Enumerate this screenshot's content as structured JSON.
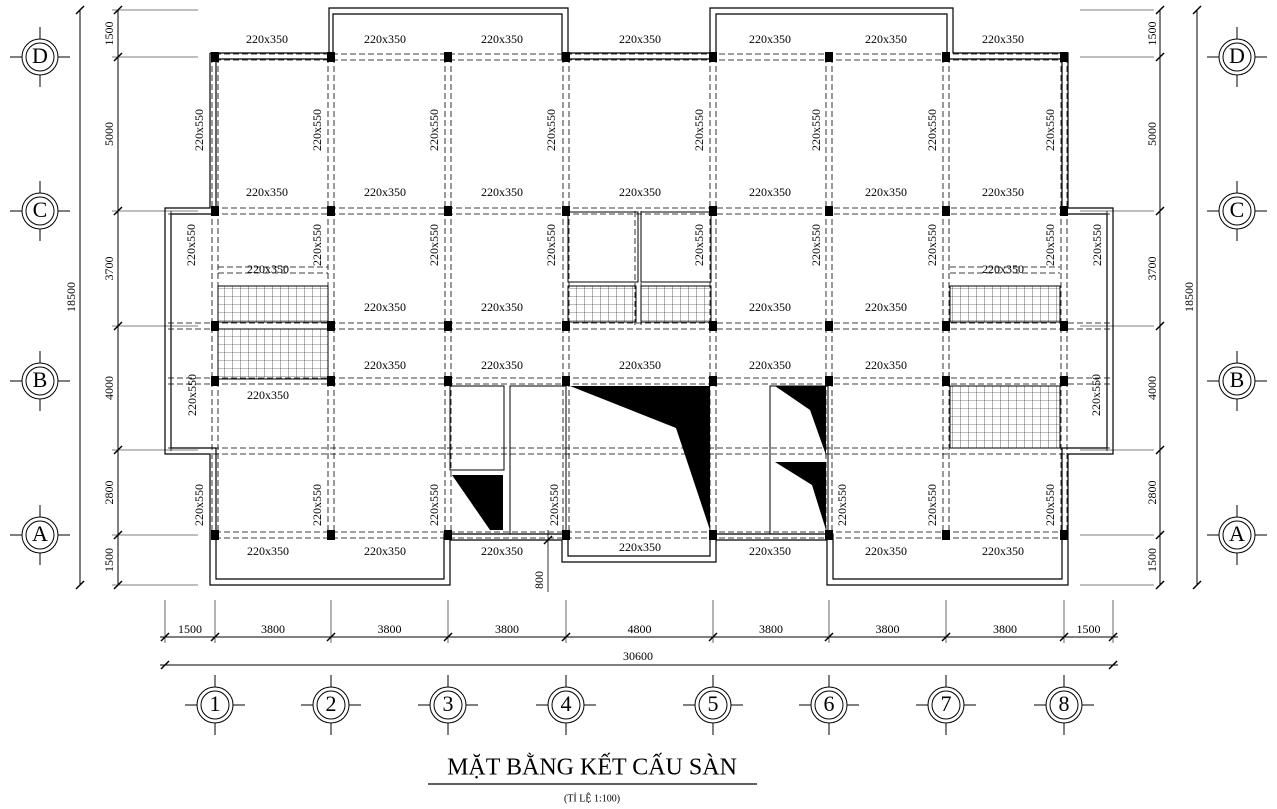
{
  "axes": {
    "columns": [
      "1",
      "2",
      "3",
      "4",
      "5",
      "6",
      "7",
      "8"
    ],
    "rows": [
      "D",
      "C",
      "B",
      "A"
    ]
  },
  "beams": {
    "horizontal": [
      "220x350",
      "220x350",
      "220x350",
      "220x350",
      "220x350",
      "220x350",
      "220x350",
      "220x350",
      "220x350",
      "220x350",
      "220x350",
      "220x350",
      "220x350",
      "220x350",
      "220x350",
      "220x350",
      "220x350",
      "220x350",
      "220x350",
      "220x350",
      "220x350",
      "220x350",
      "220x350",
      "220x350",
      "220x350",
      "220x350",
      "220x350",
      "220x350",
      "220x350",
      "220x350",
      "220x350",
      "220x350",
      "220x350"
    ],
    "vertical": [
      "220x550",
      "220x550",
      "220x550",
      "220x550",
      "220x550",
      "220x550",
      "220x550",
      "220x550",
      "220x550",
      "220x550",
      "220x550",
      "220x550",
      "220x550",
      "220x550",
      "220x550",
      "220x550",
      "220x550",
      "220x550",
      "220x550",
      "220x550",
      "220x550",
      "220x550",
      "220x550",
      "220x550",
      "220x550",
      "220x550"
    ]
  },
  "dimensions": {
    "left": [
      "1500",
      "5000",
      "3700",
      "4000",
      "2800",
      "1500"
    ],
    "left_total": "18500",
    "right": [
      "1500",
      "5000",
      "3700",
      "4000",
      "2800",
      "1500"
    ],
    "right_total": "18500",
    "bottom": [
      "1500",
      "3800",
      "3800",
      "3800",
      "4800",
      "3800",
      "3800",
      "3800",
      "1500"
    ],
    "bottom_total": "30600",
    "offset": "800"
  },
  "title": "MẶT BẰNG KẾT CẤU SÀN",
  "scale": "(TỈ LỆ 1:100)"
}
